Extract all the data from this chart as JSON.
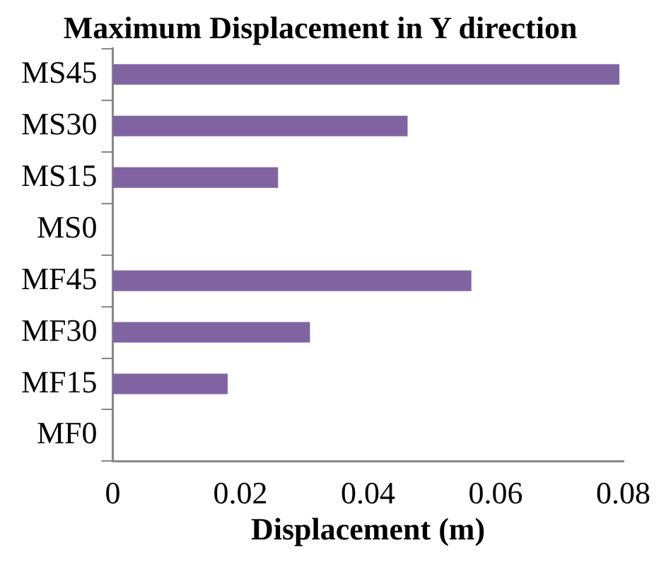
{
  "chart_data": {
    "type": "bar",
    "orientation": "horizontal",
    "title": "Maximum Displacement in Y direction",
    "xlabel": "Displacement (m)",
    "categories": [
      "MS45",
      "MS30",
      "MS15",
      "MS0",
      "MF45",
      "MF30",
      "MF15",
      "MF0"
    ],
    "values": [
      0.0794,
      0.0462,
      0.0259,
      0,
      0.0562,
      0.0309,
      0.018,
      0
    ],
    "color": "#8064a2",
    "xlim": [
      0,
      0.08
    ],
    "xticks": [
      0,
      0.02,
      0.04,
      0.06,
      0.08
    ],
    "grid": false,
    "legend": false
  }
}
